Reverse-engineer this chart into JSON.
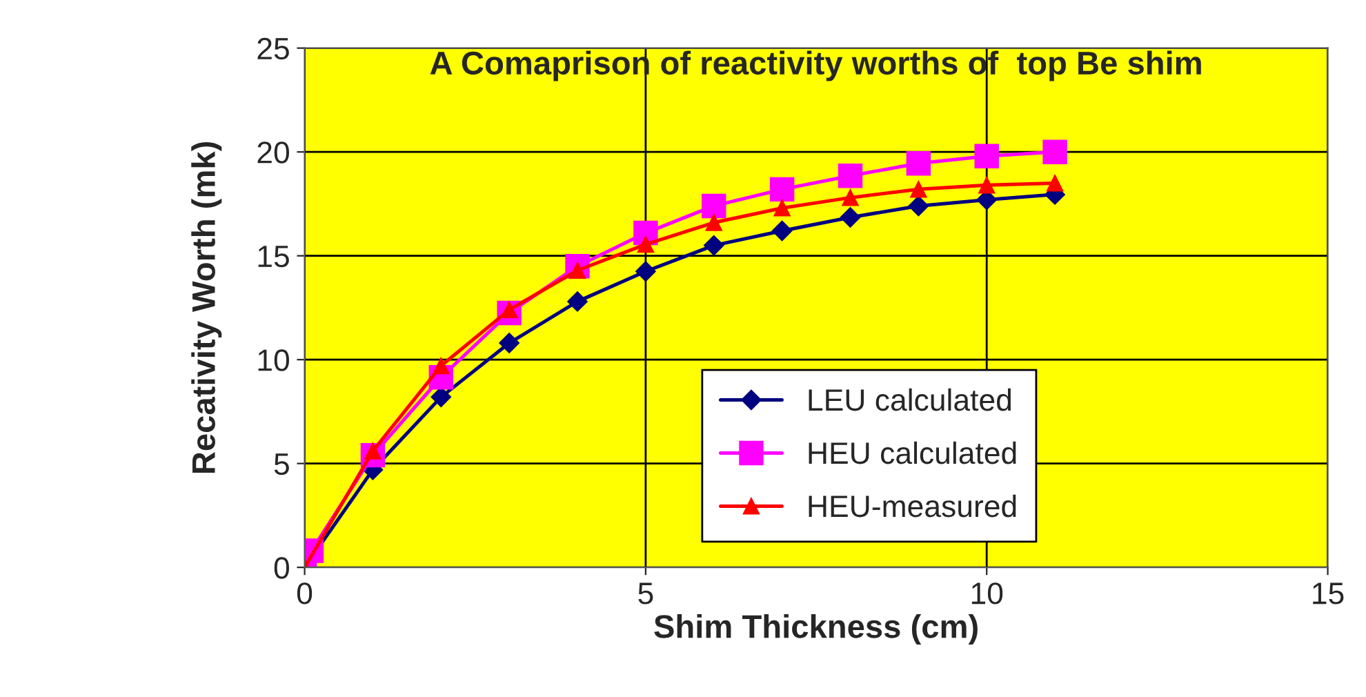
{
  "chart_data": {
    "type": "line",
    "title": "A Comaprison of reactivity worths of  top Be shim",
    "xlabel": "Shim Thickness (cm)",
    "ylabel": "Recativity Worth (mk)",
    "xlim": [
      0,
      15
    ],
    "xticks": [
      0,
      5,
      10,
      15
    ],
    "ylim": [
      0,
      25
    ],
    "yticks": [
      0,
      5,
      10,
      15,
      20,
      25
    ],
    "grid": true,
    "legend": "bottom right",
    "series": [
      {
        "name": "LEU calculated",
        "color": "#000080",
        "marker": "diamond",
        "x": [
          0,
          1,
          2,
          3,
          4,
          5,
          6,
          7,
          8,
          9,
          10,
          11
        ],
        "values": [
          0,
          4.7,
          8.2,
          10.8,
          12.8,
          14.25,
          15.5,
          16.2,
          16.85,
          17.4,
          17.7,
          17.95
        ]
      },
      {
        "name": "HEU calculated",
        "color": "#ff00ff",
        "marker": "square",
        "x": [
          0,
          0.1,
          1,
          2,
          3,
          4,
          5,
          6,
          7,
          8,
          9,
          10,
          11
        ],
        "values": [
          0,
          0.8,
          5.4,
          9.15,
          12.25,
          14.5,
          16.1,
          17.4,
          18.2,
          18.85,
          19.45,
          19.8,
          20.0
        ]
      },
      {
        "name": "HEU-measured",
        "color": "#ff0000",
        "marker": "triangle",
        "x": [
          0,
          1,
          2,
          3,
          4,
          5,
          6,
          7,
          8,
          9,
          10,
          11
        ],
        "values": [
          0,
          5.6,
          9.7,
          12.4,
          14.3,
          15.55,
          16.6,
          17.3,
          17.8,
          18.2,
          18.4,
          18.5
        ]
      }
    ]
  }
}
